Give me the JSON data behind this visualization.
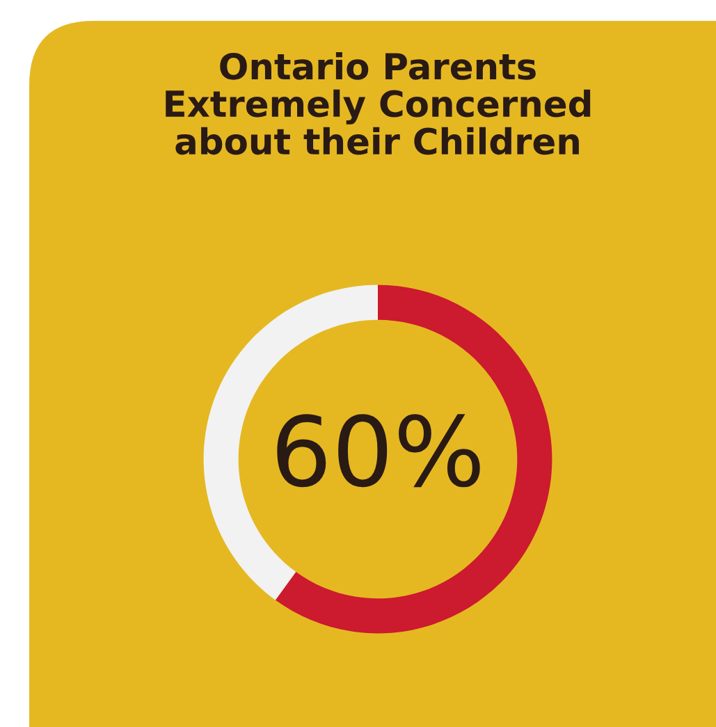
{
  "chart_data": {
    "type": "donut",
    "title": "Ontario Parents\nExtremely Concerned\nabout their Children",
    "categories": [
      null,
      null
    ],
    "values": [
      60,
      40
    ],
    "colors": [
      "#cc1a2e",
      "#f2f2f2"
    ],
    "annotations": [
      "60%"
    ]
  }
}
